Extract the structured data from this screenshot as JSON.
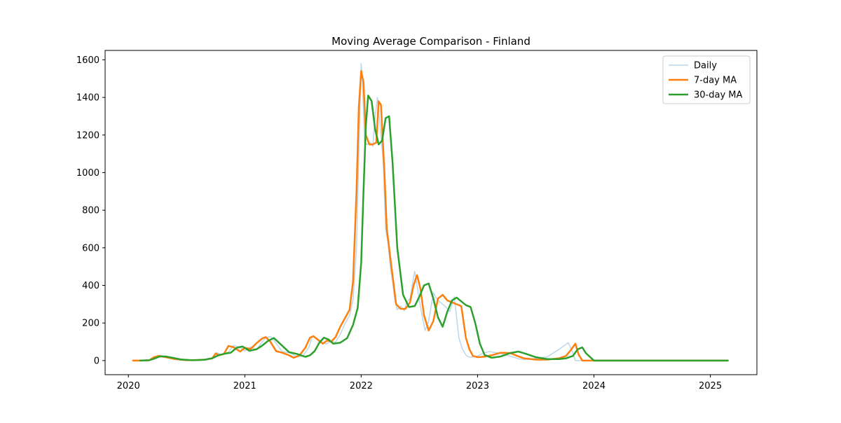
{
  "chart_data": {
    "type": "line",
    "title": "Moving Average Comparison - Finland",
    "xlabel": "",
    "ylabel": "",
    "xlim": [
      2019.8,
      2025.4
    ],
    "ylim": [
      -75,
      1650
    ],
    "x_ticks": [
      2020,
      2021,
      2022,
      2023,
      2024,
      2025
    ],
    "x_tick_labels": [
      "2020",
      "2021",
      "2022",
      "2023",
      "2024",
      "2025"
    ],
    "y_ticks": [
      0,
      200,
      400,
      600,
      800,
      1000,
      1200,
      1400,
      1600
    ],
    "y_tick_labels": [
      "0",
      "200",
      "400",
      "600",
      "800",
      "1000",
      "1200",
      "1400",
      "1600"
    ],
    "grid": false,
    "legend_position": "top-right",
    "series": [
      {
        "name": "Daily",
        "color": "#1f77b4",
        "opacity": 0.3,
        "width": 1.5,
        "x": [
          2020.04,
          2020.1,
          2020.18,
          2020.22,
          2020.27,
          2020.32,
          2020.4,
          2020.5,
          2020.6,
          2020.65,
          2020.72,
          2020.76,
          2020.8,
          2020.86,
          2020.9,
          2020.96,
          2021.0,
          2021.05,
          2021.1,
          2021.15,
          2021.18,
          2021.22,
          2021.27,
          2021.32,
          2021.38,
          2021.42,
          2021.45,
          2021.5,
          2021.55,
          2021.58,
          2021.62,
          2021.66,
          2021.7,
          2021.74,
          2021.78,
          2021.82,
          2021.86,
          2021.9,
          2021.93,
          2021.96,
          2021.98,
          2022.0,
          2022.01,
          2022.03,
          2022.05,
          2022.08,
          2022.1,
          2022.12,
          2022.14,
          2022.17,
          2022.19,
          2022.21,
          2022.23,
          2022.25,
          2022.27,
          2022.29,
          2022.31,
          2022.34,
          2022.37,
          2022.39,
          2022.42,
          2022.46,
          2022.48,
          2022.5,
          2022.52,
          2022.55,
          2022.58,
          2022.62,
          2022.65,
          2022.68,
          2022.72,
          2022.76,
          2022.8,
          2022.84,
          2022.87,
          2022.9,
          2022.92,
          2022.95,
          2022.98,
          2023.0,
          2023.05,
          2023.1,
          2023.18,
          2023.25,
          2023.3,
          2023.35,
          2023.4,
          2023.45,
          2023.5,
          2023.6,
          2023.7,
          2023.78,
          2023.82,
          2023.84,
          2023.86,
          2023.88,
          2023.92,
          2024.0,
          2024.5,
          2025.0,
          2025.15
        ],
        "y": [
          0,
          0,
          2,
          15,
          28,
          22,
          12,
          2,
          3,
          5,
          15,
          42,
          30,
          45,
          80,
          72,
          50,
          72,
          58,
          100,
          122,
          128,
          92,
          48,
          42,
          30,
          18,
          25,
          70,
          128,
          118,
          100,
          88,
          105,
          98,
          140,
          195,
          240,
          320,
          600,
          1100,
          1580,
          1500,
          1160,
          1150,
          1160,
          1140,
          1300,
          1400,
          1200,
          1050,
          700,
          630,
          500,
          420,
          320,
          270,
          290,
          265,
          310,
          330,
          475,
          400,
          320,
          250,
          160,
          210,
          360,
          330,
          310,
          290,
          260,
          340,
          120,
          60,
          30,
          20,
          18,
          22,
          25,
          40,
          48,
          40,
          28,
          20,
          10,
          5,
          8,
          12,
          20,
          60,
          95,
          40,
          0,
          0,
          0,
          0,
          0,
          0,
          0,
          0
        ]
      },
      {
        "name": "7-day MA",
        "color": "#ff7f0e",
        "opacity": 1,
        "width": 2.5,
        "x": [
          2020.04,
          2020.1,
          2020.18,
          2020.22,
          2020.26,
          2020.32,
          2020.4,
          2020.5,
          2020.6,
          2020.66,
          2020.72,
          2020.75,
          2020.78,
          2020.82,
          2020.86,
          2020.9,
          2020.96,
          2021.0,
          2021.05,
          2021.1,
          2021.15,
          2021.18,
          2021.22,
          2021.27,
          2021.32,
          2021.38,
          2021.42,
          2021.47,
          2021.52,
          2021.56,
          2021.59,
          2021.63,
          2021.67,
          2021.71,
          2021.74,
          2021.78,
          2021.82,
          2021.86,
          2021.9,
          2021.93,
          2021.96,
          2021.98,
          2022.0,
          2022.02,
          2022.04,
          2022.07,
          2022.1,
          2022.13,
          2022.15,
          2022.17,
          2022.2,
          2022.22,
          2022.24,
          2022.27,
          2022.3,
          2022.34,
          2022.38,
          2022.42,
          2022.45,
          2022.48,
          2022.51,
          2022.54,
          2022.58,
          2022.62,
          2022.66,
          2022.7,
          2022.74,
          2022.78,
          2022.82,
          2022.86,
          2022.9,
          2022.93,
          2022.96,
          2023.0,
          2023.05,
          2023.12,
          2023.2,
          2023.28,
          2023.34,
          2023.4,
          2023.5,
          2023.6,
          2023.7,
          2023.76,
          2023.8,
          2023.84,
          2023.87,
          2023.9,
          2024.0,
          2024.5,
          2025.0,
          2025.15
        ],
        "y": [
          0,
          0,
          2,
          18,
          25,
          18,
          8,
          2,
          3,
          5,
          12,
          38,
          28,
          35,
          78,
          72,
          48,
          68,
          62,
          92,
          118,
          125,
          100,
          50,
          42,
          28,
          15,
          28,
          68,
          122,
          130,
          110,
          90,
          108,
          100,
          125,
          180,
          225,
          270,
          420,
          900,
          1350,
          1540,
          1480,
          1200,
          1150,
          1150,
          1160,
          1380,
          1360,
          1000,
          700,
          600,
          450,
          300,
          275,
          275,
          310,
          400,
          455,
          380,
          240,
          160,
          210,
          330,
          350,
          320,
          310,
          300,
          290,
          120,
          60,
          25,
          18,
          20,
          28,
          42,
          40,
          25,
          12,
          5,
          5,
          12,
          25,
          55,
          90,
          30,
          0,
          0,
          0,
          0,
          0
        ]
      },
      {
        "name": "30-day MA",
        "color": "#2ca02c",
        "opacity": 1,
        "width": 2.5,
        "x": [
          2020.1,
          2020.18,
          2020.22,
          2020.27,
          2020.32,
          2020.38,
          2020.45,
          2020.55,
          2020.65,
          2020.72,
          2020.78,
          2020.84,
          2020.88,
          2020.93,
          2020.98,
          2021.04,
          2021.1,
          2021.15,
          2021.2,
          2021.25,
          2021.32,
          2021.38,
          2021.45,
          2021.52,
          2021.56,
          2021.6,
          2021.64,
          2021.68,
          2021.72,
          2021.76,
          2021.82,
          2021.88,
          2021.93,
          2021.97,
          2022.0,
          2022.02,
          2022.04,
          2022.06,
          2022.09,
          2022.12,
          2022.15,
          2022.18,
          2022.21,
          2022.24,
          2022.27,
          2022.31,
          2022.36,
          2022.41,
          2022.46,
          2022.5,
          2022.54,
          2022.58,
          2022.62,
          2022.66,
          2022.7,
          2022.74,
          2022.78,
          2022.82,
          2022.86,
          2022.9,
          2022.94,
          2022.98,
          2023.02,
          2023.06,
          2023.12,
          2023.2,
          2023.28,
          2023.35,
          2023.42,
          2023.5,
          2023.6,
          2023.7,
          2023.76,
          2023.82,
          2023.86,
          2023.9,
          2023.93,
          2024.0,
          2024.5,
          2025.0,
          2025.15
        ],
        "y": [
          0,
          2,
          10,
          22,
          22,
          15,
          6,
          2,
          4,
          12,
          30,
          38,
          42,
          68,
          75,
          52,
          60,
          80,
          105,
          120,
          80,
          45,
          35,
          20,
          28,
          50,
          95,
          122,
          112,
          90,
          95,
          120,
          190,
          280,
          520,
          900,
          1250,
          1410,
          1380,
          1230,
          1150,
          1170,
          1290,
          1300,
          1050,
          600,
          350,
          285,
          290,
          340,
          400,
          410,
          330,
          230,
          180,
          260,
          320,
          335,
          315,
          295,
          285,
          200,
          90,
          30,
          15,
          22,
          40,
          48,
          35,
          18,
          8,
          8,
          12,
          25,
          60,
          70,
          40,
          0,
          0,
          0,
          0
        ]
      }
    ]
  }
}
